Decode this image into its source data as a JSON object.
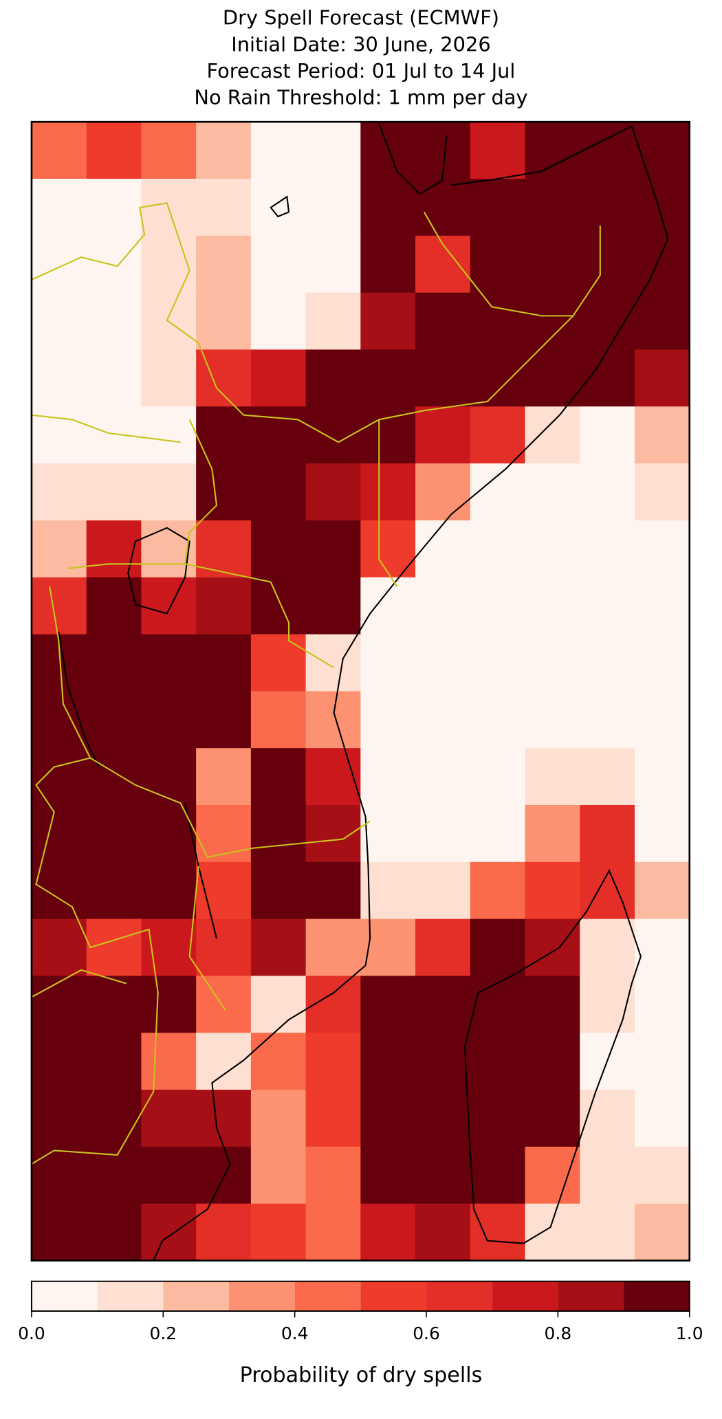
{
  "chart_data": {
    "type": "heatmap",
    "title": [
      "Dry Spell Forecast (ECMWF)",
      "Initial Date: 30 June, 2026",
      "Forecast Period: 01 Jul to 14 Jul",
      "No Rain Threshold: 1 mm per day"
    ],
    "values": [
      [
        0.4,
        0.5,
        0.4,
        0.2,
        0.0,
        0.0,
        1.0,
        0.9,
        0.7,
        1.0,
        1.0,
        1.0
      ],
      [
        0.0,
        0.0,
        0.1,
        0.1,
        0.0,
        0.0,
        1.0,
        0.9,
        1.0,
        1.0,
        1.0,
        1.0
      ],
      [
        0.0,
        0.0,
        0.1,
        0.2,
        0.0,
        0.0,
        0.9,
        0.6,
        1.0,
        1.0,
        1.0,
        1.0
      ],
      [
        0.0,
        0.0,
        0.1,
        0.2,
        0.0,
        0.1,
        0.8,
        1.0,
        1.0,
        1.0,
        1.0,
        1.0
      ],
      [
        0.0,
        0.0,
        0.1,
        0.6,
        0.7,
        0.9,
        1.0,
        1.0,
        1.0,
        1.0,
        0.9,
        0.8
      ],
      [
        0.0,
        0.0,
        0.0,
        0.9,
        1.0,
        1.0,
        0.9,
        0.7,
        0.6,
        0.1,
        0.0,
        0.2
      ],
      [
        0.1,
        0.1,
        0.1,
        1.0,
        1.0,
        0.8,
        0.7,
        0.3,
        0.0,
        0.0,
        0.0,
        0.1
      ],
      [
        0.2,
        0.7,
        0.2,
        0.6,
        0.9,
        0.9,
        0.5,
        0.0,
        0.0,
        0.0,
        0.0,
        0.0
      ],
      [
        0.6,
        1.0,
        0.7,
        0.8,
        0.9,
        0.9,
        0.0,
        0.0,
        0.0,
        0.0,
        0.0,
        0.0
      ],
      [
        1.0,
        1.0,
        1.0,
        0.9,
        0.5,
        0.1,
        0.0,
        0.0,
        0.0,
        0.0,
        0.0,
        0.0
      ],
      [
        1.0,
        1.0,
        1.0,
        1.0,
        0.4,
        0.3,
        0.0,
        0.0,
        0.0,
        0.0,
        0.0,
        0.0
      ],
      [
        0.9,
        0.9,
        0.9,
        0.3,
        0.9,
        0.7,
        0.0,
        0.0,
        0.0,
        0.1,
        0.1,
        0.0
      ],
      [
        1.0,
        1.0,
        1.0,
        0.4,
        0.9,
        0.8,
        0.0,
        0.0,
        0.0,
        0.3,
        0.6,
        0.0
      ],
      [
        1.0,
        0.9,
        0.9,
        0.5,
        0.9,
        0.9,
        0.1,
        0.1,
        0.4,
        0.5,
        0.6,
        0.2
      ],
      [
        0.8,
        0.5,
        0.7,
        0.6,
        0.8,
        0.3,
        0.3,
        0.6,
        0.9,
        0.8,
        0.1,
        0.0
      ],
      [
        1.0,
        0.9,
        0.9,
        0.4,
        0.1,
        0.6,
        0.9,
        1.0,
        1.0,
        1.0,
        0.1,
        0.0
      ],
      [
        1.0,
        0.9,
        0.4,
        0.1,
        0.4,
        0.5,
        1.0,
        1.0,
        1.0,
        0.9,
        0.0,
        0.0
      ],
      [
        1.0,
        0.9,
        0.8,
        0.8,
        0.3,
        0.5,
        1.0,
        1.0,
        1.0,
        0.9,
        0.1,
        0.0
      ],
      [
        1.0,
        1.0,
        0.9,
        0.9,
        0.3,
        0.4,
        0.9,
        1.0,
        1.0,
        0.4,
        0.1,
        0.1
      ],
      [
        1.0,
        0.9,
        0.8,
        0.6,
        0.5,
        0.4,
        0.7,
        0.8,
        0.6,
        0.1,
        0.1,
        0.2
      ]
    ],
    "colorbar": {
      "label": "Probability of dry spells",
      "levels": [
        0.0,
        0.1,
        0.2,
        0.3,
        0.4,
        0.5,
        0.6,
        0.7,
        0.8,
        0.9,
        1.0
      ],
      "colors": [
        "#fff5f0",
        "#fee0d2",
        "#fcbba1",
        "#fc9272",
        "#fb6a4a",
        "#ef3b2c",
        "#e32f27",
        "#cb181d",
        "#a50f15",
        "#67000d"
      ],
      "ticks": [
        {
          "value": 0.0,
          "label": "0.0"
        },
        {
          "value": 0.2,
          "label": "0.2"
        },
        {
          "value": 0.4,
          "label": "0.4"
        },
        {
          "value": 0.6,
          "label": "0.6"
        },
        {
          "value": 0.8,
          "label": "0.8"
        },
        {
          "value": 1.0,
          "label": "1.0"
        }
      ]
    }
  }
}
